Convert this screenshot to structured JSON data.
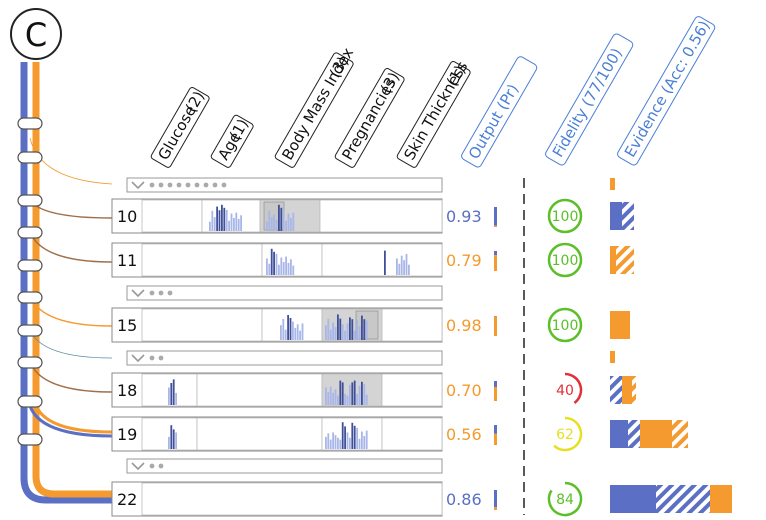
{
  "panel": {
    "letter": "C"
  },
  "features": [
    {
      "name": "Glucose",
      "count": "(2)"
    },
    {
      "name": "Age",
      "count": "(1)"
    },
    {
      "name": "Body Mass Index",
      "count": "(3)"
    },
    {
      "name": "Pregnancies",
      "count": "(3)"
    },
    {
      "name": "Skin Thickness",
      "count": "(1)"
    }
  ],
  "headers": {
    "output": "Output (Pr)",
    "fidelity": "Fidelity (77/100)",
    "evidence": "Evidence (Acc: 0.56)"
  },
  "colors": {
    "blue": "#5b6fc4",
    "orange": "#f59a2e",
    "green": "#5cbf2a",
    "red": "#e0303a",
    "yellow": "#e6e024",
    "headerBlue": "#4a7fd6"
  },
  "collapsed": [
    {
      "dots": 9
    },
    {
      "dots": 3
    },
    {
      "dots": 2
    },
    {
      "dots": 2
    }
  ],
  "rules": [
    {
      "id": "10",
      "output": "0.93",
      "label": "blue",
      "fidelity": "100",
      "fidelity_value": 1.0,
      "fidelity_color": "green"
    },
    {
      "id": "11",
      "output": "0.79",
      "label": "orange",
      "fidelity": "100",
      "fidelity_value": 1.0,
      "fidelity_color": "green"
    },
    {
      "id": "15",
      "output": "0.98",
      "label": "orange",
      "fidelity": "100",
      "fidelity_value": 1.0,
      "fidelity_color": "green"
    },
    {
      "id": "18",
      "output": "0.70",
      "label": "orange",
      "fidelity": "40",
      "fidelity_value": 0.4,
      "fidelity_color": "red"
    },
    {
      "id": "19",
      "output": "0.56",
      "label": "orange",
      "fidelity": "62",
      "fidelity_value": 0.62,
      "fidelity_color": "yellow"
    },
    {
      "id": "22",
      "output": "0.86",
      "label": "blue",
      "fidelity": "84",
      "fidelity_value": 0.84,
      "fidelity_color": "green"
    }
  ]
}
